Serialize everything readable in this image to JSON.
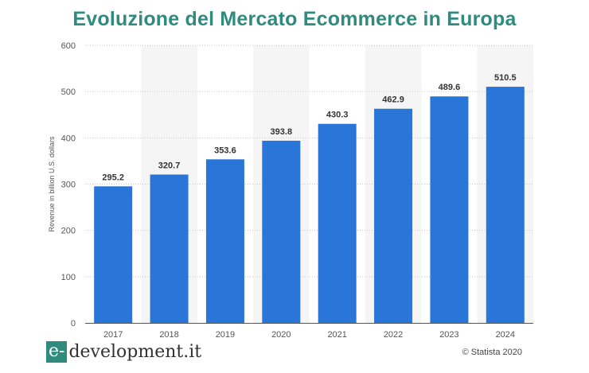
{
  "chart_data": {
    "type": "bar",
    "title": "Evoluzione del Mercato Ecommerce in Europa",
    "ylabel": "Revenue in billion U.S. dollars",
    "xlabel": "",
    "categories": [
      "2017",
      "2018",
      "2019",
      "2020",
      "2021",
      "2022",
      "2023",
      "2024"
    ],
    "values": [
      295.2,
      320.7,
      353.6,
      393.8,
      430.3,
      462.9,
      489.6,
      510.5
    ],
    "value_labels": [
      "295.2",
      "320.7",
      "353.6",
      "393.8",
      "430.3",
      "462.9",
      "489.6",
      "510.5"
    ],
    "ylim": [
      0,
      600
    ],
    "yticks": [
      0,
      100,
      200,
      300,
      400,
      500,
      600
    ],
    "grid": true,
    "bar_color": "#2a75d8",
    "alt_band_color": "#f5f5f5"
  },
  "branding": {
    "logo_box": "e-",
    "logo_rest": "development.it",
    "logo_color": "#2e8b7d"
  },
  "source": "© Statista 2020"
}
